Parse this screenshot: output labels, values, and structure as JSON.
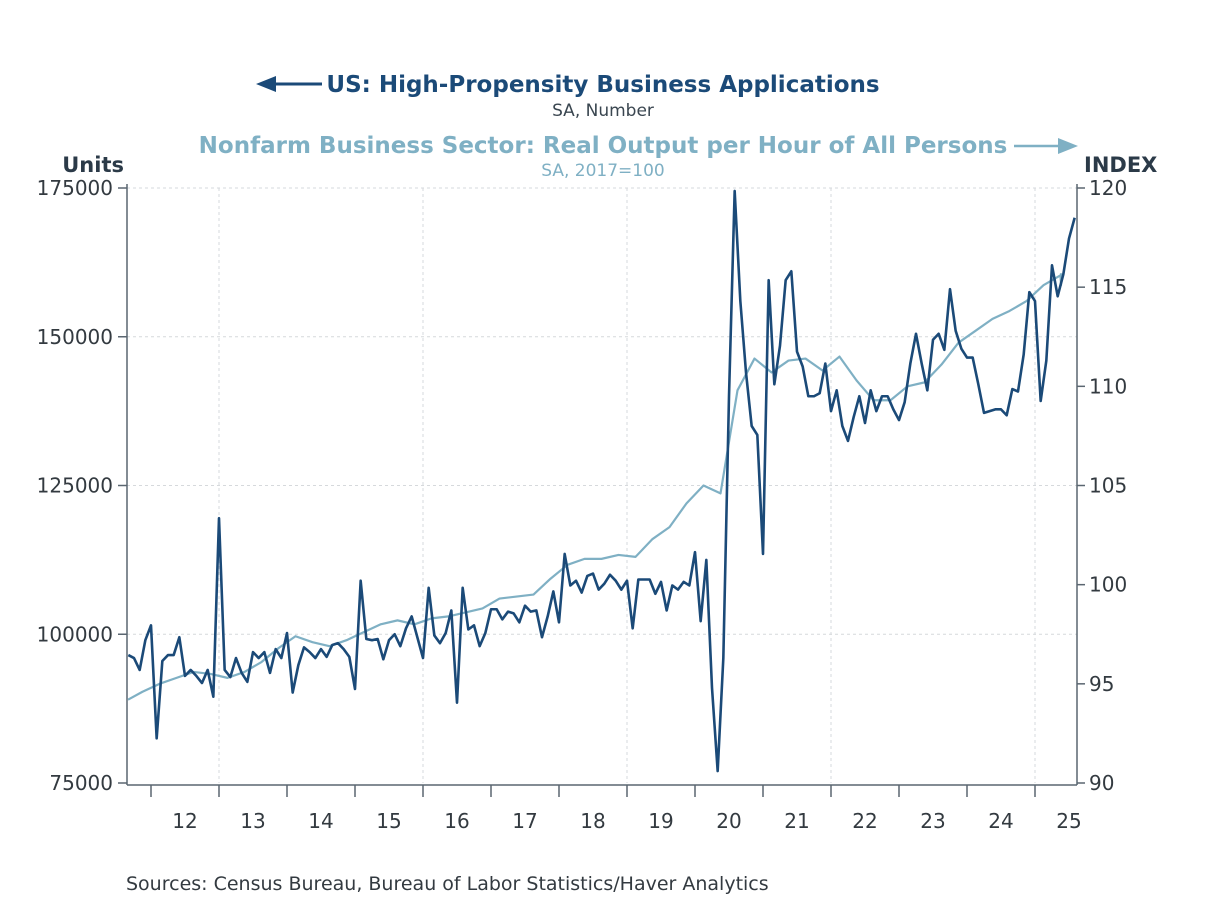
{
  "chart_data": {
    "type": "line",
    "title": "",
    "legend": [
      {
        "name": "US: High-Propensity Business Applications",
        "subtitle": "SA, Number",
        "axis": "left",
        "arrow": "left",
        "color": "#1b4a78"
      },
      {
        "name": "Nonfarm Business Sector: Real Output per Hour of All Persons",
        "subtitle": "SA, 2017=100",
        "axis": "right",
        "arrow": "right",
        "color": "#7fb0c4"
      }
    ],
    "legend_placement": "top",
    "left_axis": {
      "label": "Units",
      "min": 75000,
      "max": 175000,
      "ticks": [
        75000,
        100000,
        125000,
        150000,
        175000
      ],
      "tick_labels": [
        "75000",
        "100000",
        "125000",
        "150000",
        "175000"
      ]
    },
    "right_axis": {
      "label": "INDEX",
      "min": 90,
      "max": 120,
      "ticks": [
        90,
        95,
        100,
        105,
        110,
        115,
        120
      ],
      "tick_labels": [
        "90",
        "95",
        "100",
        "105",
        "110",
        "115",
        "120"
      ]
    },
    "x_axis": {
      "start": "2011-09",
      "end": "2025-08",
      "tick_labels": [
        "12",
        "13",
        "14",
        "15",
        "16",
        "17",
        "18",
        "19",
        "20",
        "21",
        "22",
        "23",
        "24",
        "25"
      ],
      "years": [
        2012,
        2013,
        2014,
        2015,
        2016,
        2017,
        2018,
        2019,
        2020,
        2021,
        2022,
        2023,
        2024,
        2025
      ],
      "gridline_years": [
        2013,
        2016,
        2019,
        2022,
        2025
      ]
    },
    "grid": true,
    "series": [
      {
        "name": "US: High-Propensity Business Applications",
        "frequency": "monthly",
        "start": "2011-09",
        "values": [
          96500,
          96000,
          94000,
          99000,
          101500,
          82500,
          95500,
          96500,
          96500,
          99500,
          93000,
          94000,
          93000,
          91800,
          94000,
          89500,
          119500,
          94000,
          92800,
          96000,
          93500,
          92000,
          97000,
          96000,
          97000,
          93500,
          97500,
          96000,
          100200,
          90200,
          94800,
          97800,
          97000,
          96000,
          97500,
          96200,
          98200,
          98500,
          97500,
          96200,
          90800,
          109000,
          99200,
          99000,
          99200,
          95800,
          99000,
          100000,
          98000,
          101000,
          103000,
          99500,
          96000,
          107800,
          99800,
          98500,
          100200,
          104000,
          88500,
          107800,
          100800,
          101500,
          98000,
          100200,
          104200,
          104200,
          102500,
          103800,
          103500,
          102000,
          104800,
          103800,
          104000,
          99500,
          103000,
          107200,
          102000,
          113500,
          108200,
          109000,
          107000,
          109800,
          110200,
          107500,
          108500,
          110000,
          109000,
          107500,
          109000,
          101000,
          109200,
          109200,
          109200,
          106800,
          108800,
          104000,
          108200,
          107500,
          108800,
          108200,
          113800,
          102200,
          112500,
          91000,
          77000,
          96000,
          140000,
          174500,
          156000,
          144000,
          135000,
          133500,
          113500,
          159500,
          142000,
          148500,
          159500,
          161000,
          147500,
          145000,
          140000,
          140000,
          140500,
          145500,
          137500,
          141000,
          135000,
          132500,
          136500,
          140000,
          135500,
          141000,
          137500,
          140000,
          140000,
          137800,
          136000,
          139000,
          145500,
          150500,
          145500,
          141000,
          149500,
          150500,
          147800,
          158000,
          151000,
          148000,
          146500,
          146500,
          142000,
          137200,
          137500,
          137800,
          137800,
          136800,
          141200,
          140800,
          147000,
          157500,
          156000,
          139200,
          146000,
          162000,
          156800,
          160500,
          166500,
          170000
        ]
      },
      {
        "name": "Nonfarm Business Sector: Real Output per Hour of All Persons",
        "frequency": "quarterly",
        "start": "2011Q3",
        "values": [
          94.2,
          94.6,
          95.0,
          95.3,
          95.6,
          95.5,
          95.3,
          95.6,
          96.1,
          96.8,
          97.4,
          97.1,
          96.9,
          97.2,
          97.6,
          98.0,
          98.2,
          98.0,
          98.3,
          98.4,
          98.6,
          98.8,
          99.3,
          99.4,
          99.5,
          100.3,
          101.0,
          101.3,
          101.3,
          101.5,
          101.4,
          102.3,
          102.9,
          104.1,
          105.0,
          104.6,
          109.8,
          111.4,
          110.7,
          111.3,
          111.4,
          110.8,
          111.5,
          110.3,
          109.3,
          109.3,
          110.0,
          110.2,
          111.1,
          112.2,
          112.8,
          113.4,
          113.8,
          114.3,
          115.1,
          115.6,
          115.1,
          115.7
        ]
      }
    ]
  },
  "footer": {
    "sources": "Sources:  Census Bureau, Bureau of Labor Statistics/Haver Analytics"
  }
}
